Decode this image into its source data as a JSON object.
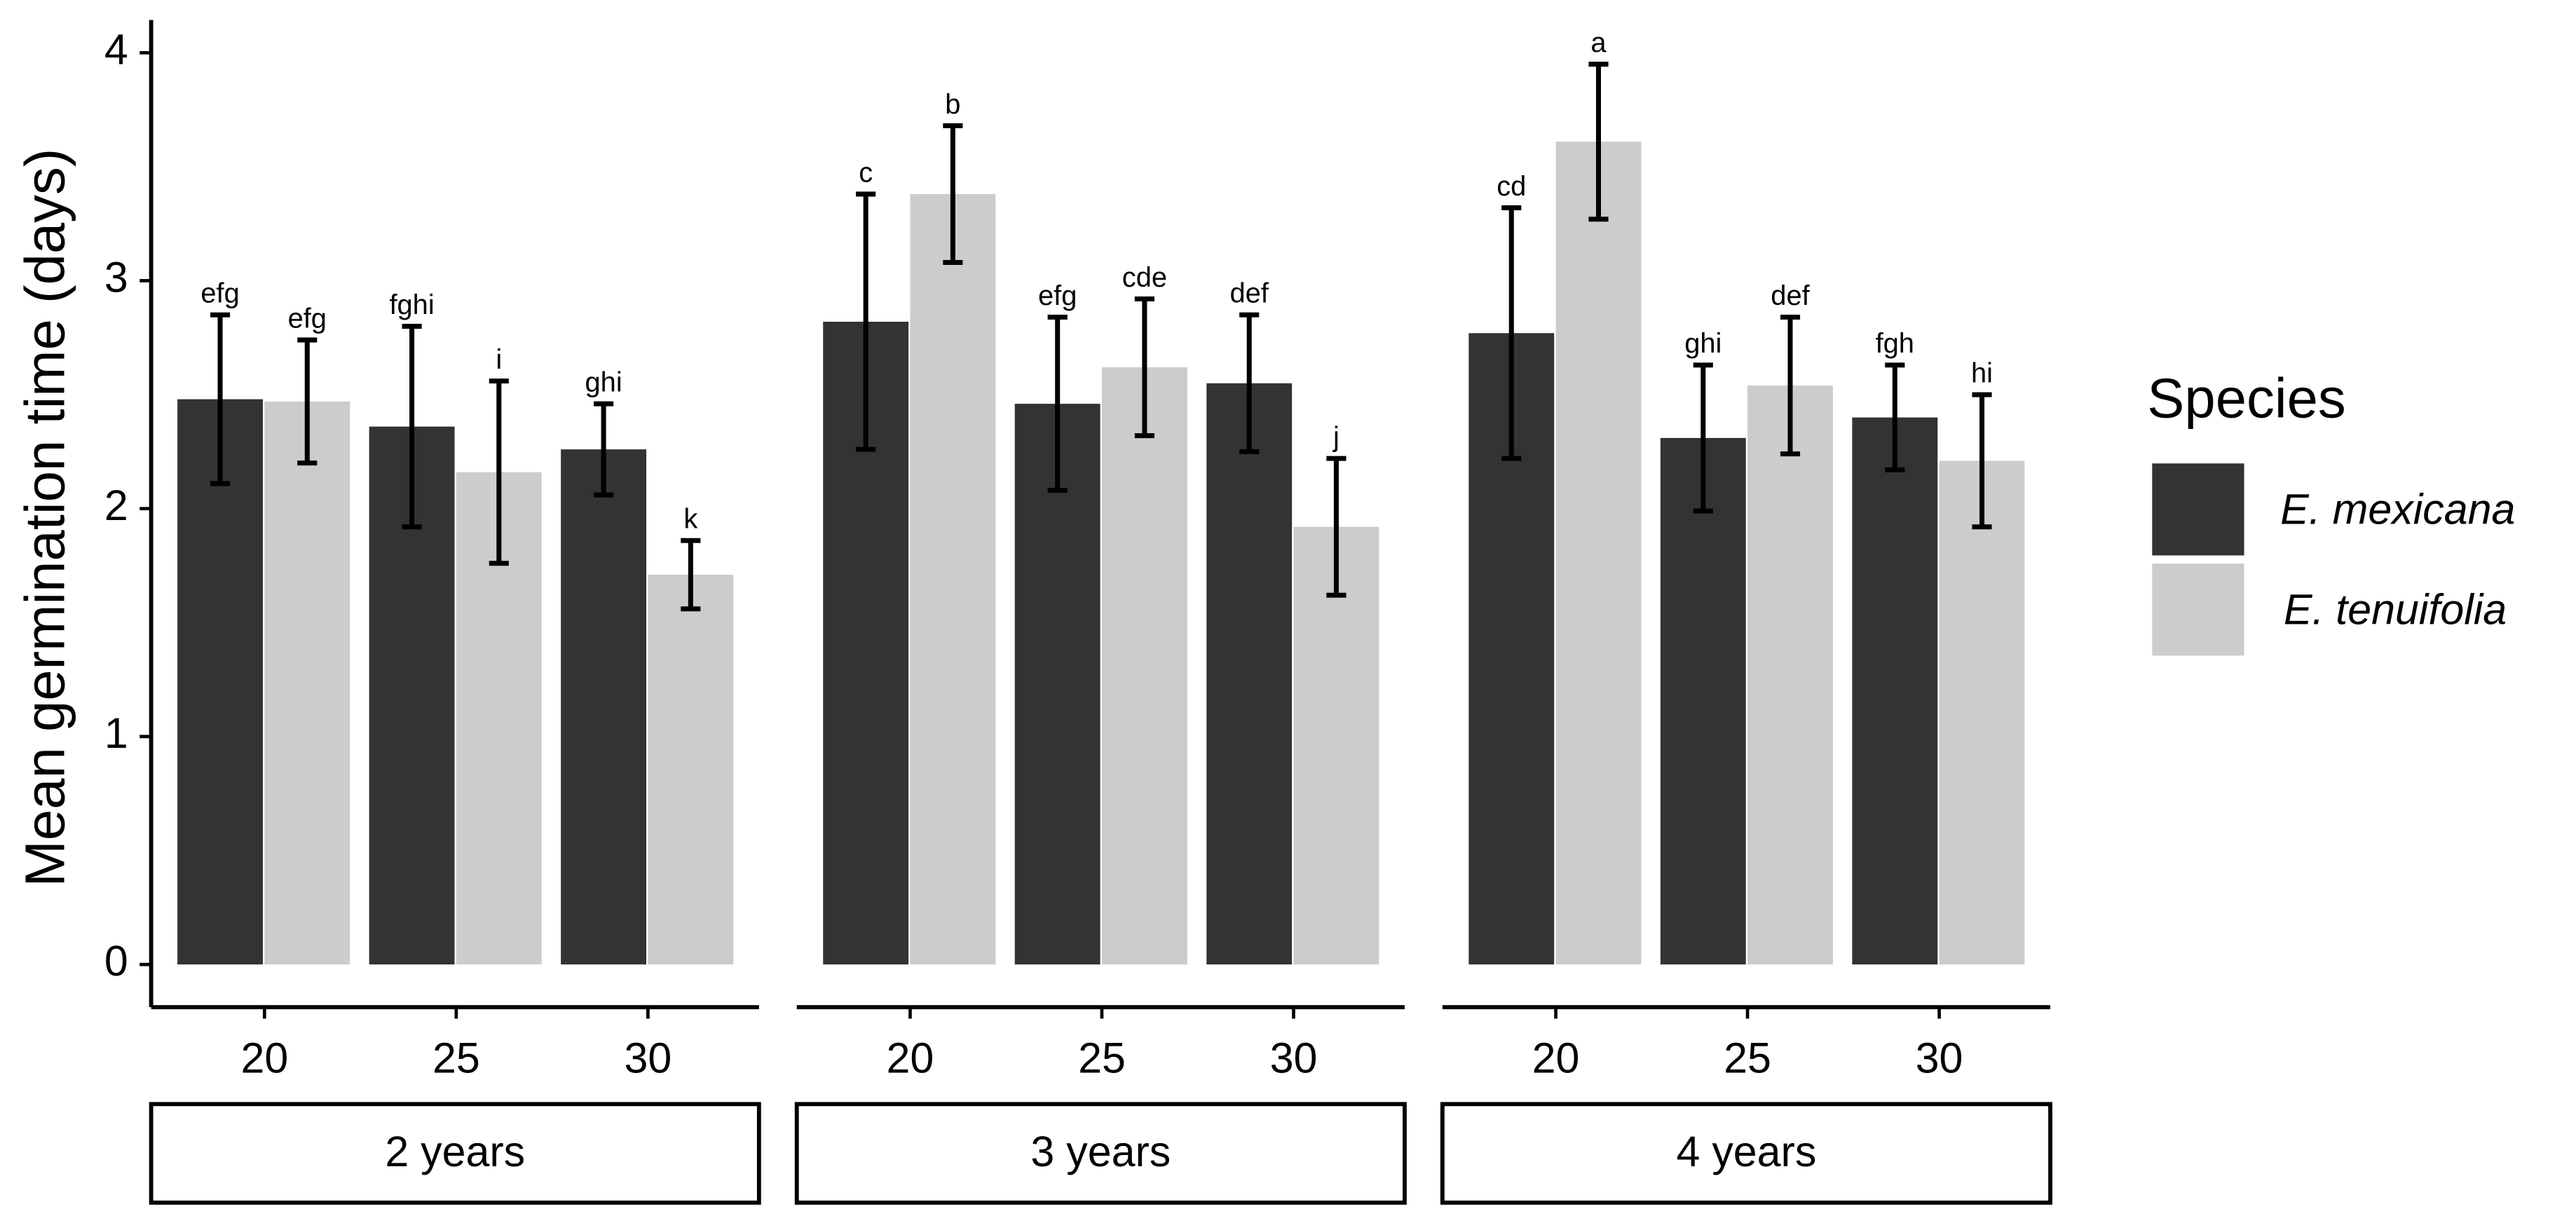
{
  "chart_data": {
    "type": "bar",
    "ylabel": "Mean germination time (days)",
    "legend_title": "Species",
    "ylim": [
      0,
      4
    ],
    "yticks": [
      0,
      1,
      2,
      3,
      4
    ],
    "series": [
      {
        "name": "E. mexicana",
        "color": "#333333"
      },
      {
        "name": "E. tenuifolia",
        "color": "#cccccc"
      }
    ],
    "panels": [
      {
        "label": "2 years",
        "categories": [
          "20",
          "25",
          "30"
        ],
        "series": [
          {
            "values": [
              2.48,
              2.36,
              2.26
            ],
            "errors": [
              0.37,
              0.44,
              0.2
            ],
            "labels": [
              "efg",
              "fghi",
              "ghi"
            ]
          },
          {
            "values": [
              2.47,
              2.16,
              1.71
            ],
            "errors": [
              0.27,
              0.4,
              0.15
            ],
            "labels": [
              "efg",
              "i",
              "k"
            ]
          }
        ]
      },
      {
        "label": "3 years",
        "categories": [
          "20",
          "25",
          "30"
        ],
        "series": [
          {
            "values": [
              2.82,
              2.46,
              2.55
            ],
            "errors": [
              0.56,
              0.38,
              0.3
            ],
            "labels": [
              "c",
              "efg",
              "def"
            ]
          },
          {
            "values": [
              3.38,
              2.62,
              1.92
            ],
            "errors": [
              0.3,
              0.3,
              0.3
            ],
            "labels": [
              "b",
              "cde",
              "j"
            ]
          }
        ]
      },
      {
        "label": "4 years",
        "categories": [
          "20",
          "25",
          "30"
        ],
        "series": [
          {
            "values": [
              2.77,
              2.31,
              2.4
            ],
            "errors": [
              0.55,
              0.32,
              0.23
            ],
            "labels": [
              "cd",
              "ghi",
              "fgh"
            ]
          },
          {
            "values": [
              3.61,
              2.54,
              2.21
            ],
            "errors": [
              0.34,
              0.3,
              0.29
            ],
            "labels": [
              "a",
              "def",
              "hi"
            ]
          }
        ]
      }
    ]
  }
}
